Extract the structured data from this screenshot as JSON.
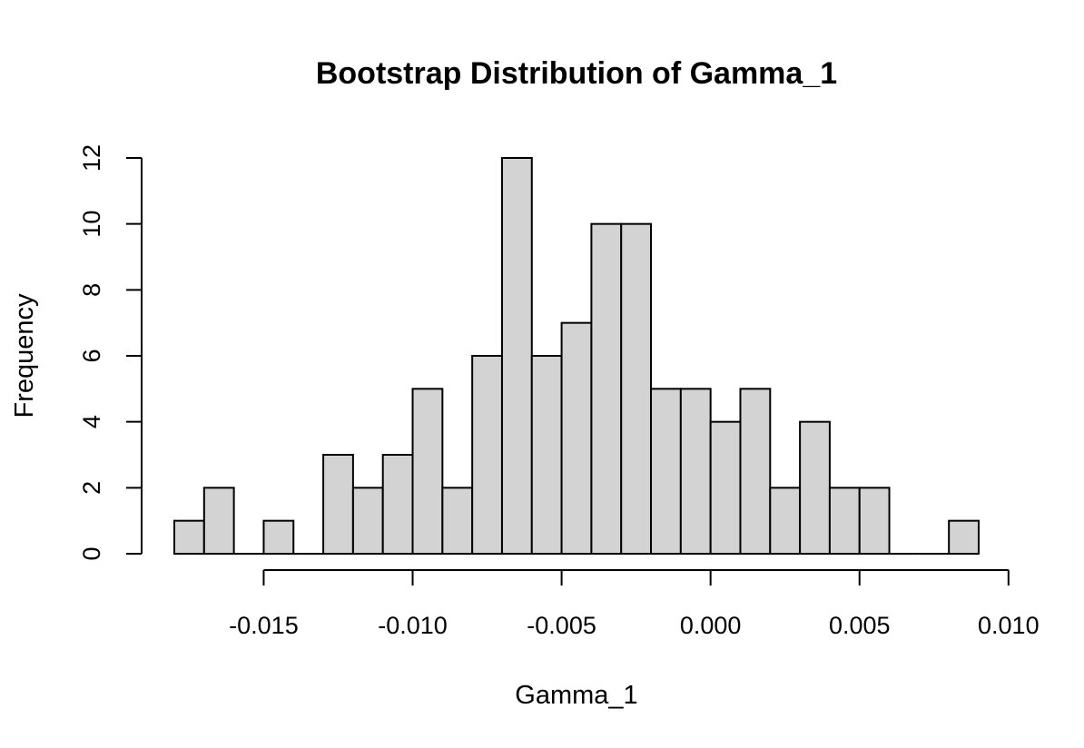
{
  "chart_data": {
    "type": "bar",
    "title": "Bootstrap Distribution of Gamma_1",
    "xlabel": "Gamma_1",
    "ylabel": "Frequency",
    "bar_color": "#d3d3d3",
    "bin_width": 0.001,
    "bin_edges": [
      -0.018,
      -0.017,
      -0.016,
      -0.015,
      -0.014,
      -0.013,
      -0.012,
      -0.011,
      -0.01,
      -0.009,
      -0.008,
      -0.007,
      -0.006,
      -0.005,
      -0.004,
      -0.003,
      -0.002,
      -0.001,
      0.0,
      0.001,
      0.002,
      0.003,
      0.004,
      0.005,
      0.006,
      0.007,
      0.008,
      0.009
    ],
    "values": [
      1,
      2,
      0,
      1,
      0,
      3,
      2,
      3,
      5,
      2,
      6,
      12,
      6,
      7,
      10,
      10,
      5,
      5,
      4,
      5,
      2,
      4,
      2,
      2,
      0,
      0,
      1
    ],
    "xlim": [
      -0.018,
      0.009
    ],
    "ylim": [
      0,
      12
    ],
    "x_ticks": [
      -0.015,
      -0.01,
      -0.005,
      0.0,
      0.005,
      0.01
    ],
    "x_tick_labels": [
      "-0.015",
      "-0.010",
      "-0.005",
      "0.000",
      "0.005",
      "0.010"
    ],
    "y_ticks": [
      0,
      2,
      4,
      6,
      8,
      10,
      12
    ],
    "y_tick_labels": [
      "0",
      "2",
      "4",
      "6",
      "8",
      "10",
      "12"
    ],
    "grid": false,
    "legend": "none"
  }
}
